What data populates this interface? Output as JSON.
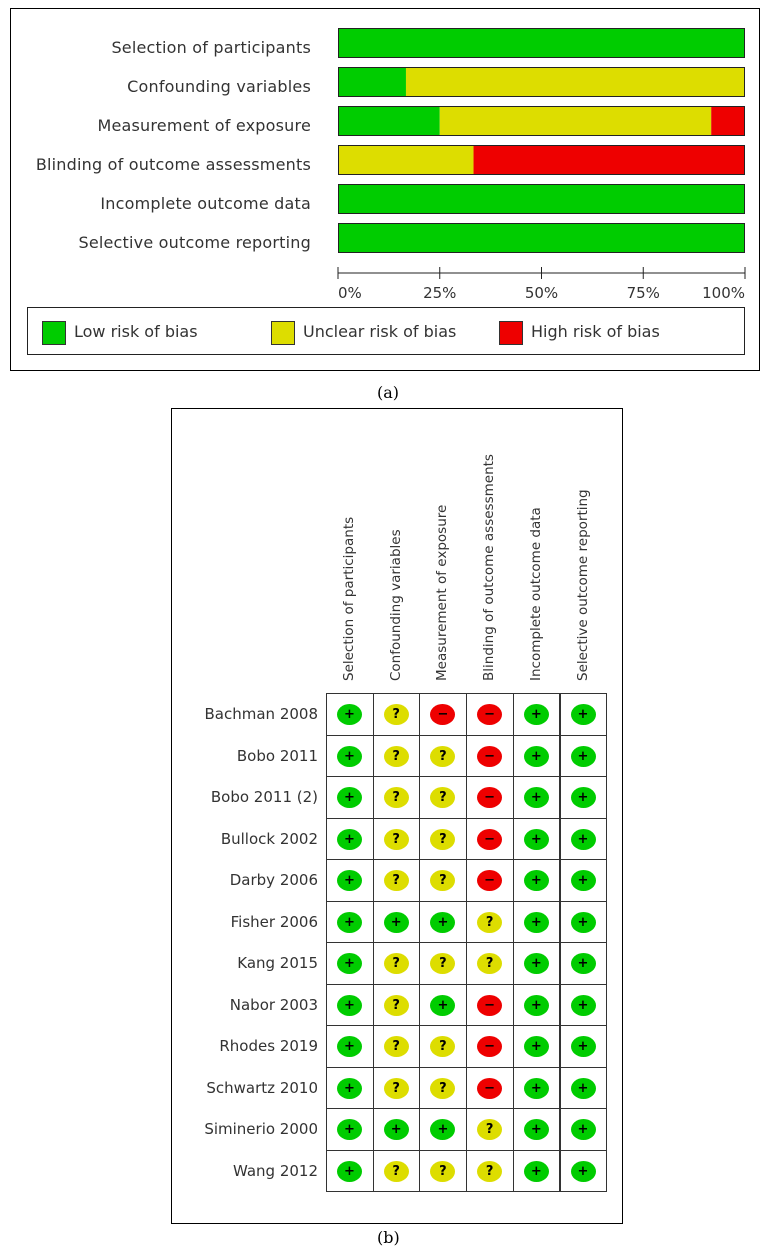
{
  "chart_data": [
    {
      "type": "bar",
      "orientation": "horizontal",
      "stacked": "100%",
      "categories": [
        "Selection of participants",
        "Confounding variables",
        "Measurement of exposure",
        "Blinding of outcome assessments",
        "Incomplete outcome data",
        "Selective outcome reporting"
      ],
      "series": [
        {
          "name": "Low risk of bias",
          "color": "#00CC00",
          "values": [
            100,
            16.7,
            25,
            0,
            100,
            100
          ]
        },
        {
          "name": "Unclear risk of bias",
          "color": "#DDDD00",
          "values": [
            0,
            83.3,
            66.7,
            33.3,
            0,
            0
          ]
        },
        {
          "name": "High risk of bias",
          "color": "#EE0000",
          "values": [
            0,
            0,
            8.3,
            66.7,
            0,
            0
          ]
        }
      ],
      "x_ticks": [
        "0%",
        "25%",
        "50%",
        "75%",
        "100%"
      ],
      "xlim": [
        0,
        100
      ],
      "legend_position": "bottom",
      "caption": "(a)"
    },
    {
      "type": "table",
      "columns": [
        "Selection of participants",
        "Confounding variables",
        "Measurement of exposure",
        "Blinding of outcome assessments",
        "Incomplete outcome data",
        "Selective outcome reporting"
      ],
      "rows": [
        {
          "study": "Bachman 2008",
          "judgements": [
            "low",
            "unclear",
            "high",
            "high",
            "low",
            "low"
          ]
        },
        {
          "study": "Bobo 2011",
          "judgements": [
            "low",
            "unclear",
            "unclear",
            "high",
            "low",
            "low"
          ]
        },
        {
          "study": "Bobo 2011 (2)",
          "judgements": [
            "low",
            "unclear",
            "unclear",
            "high",
            "low",
            "low"
          ]
        },
        {
          "study": "Bullock 2002",
          "judgements": [
            "low",
            "unclear",
            "unclear",
            "high",
            "low",
            "low"
          ]
        },
        {
          "study": "Darby 2006",
          "judgements": [
            "low",
            "unclear",
            "unclear",
            "high",
            "low",
            "low"
          ]
        },
        {
          "study": "Fisher 2006",
          "judgements": [
            "low",
            "low",
            "low",
            "unclear",
            "low",
            "low"
          ]
        },
        {
          "study": "Kang 2015",
          "judgements": [
            "low",
            "unclear",
            "unclear",
            "unclear",
            "low",
            "low"
          ]
        },
        {
          "study": "Nabor 2003",
          "judgements": [
            "low",
            "unclear",
            "low",
            "high",
            "low",
            "low"
          ]
        },
        {
          "study": "Rhodes 2019",
          "judgements": [
            "low",
            "unclear",
            "unclear",
            "high",
            "low",
            "low"
          ]
        },
        {
          "study": "Schwartz 2010",
          "judgements": [
            "low",
            "unclear",
            "unclear",
            "high",
            "low",
            "low"
          ]
        },
        {
          "study": "Siminerio 2000",
          "judgements": [
            "low",
            "low",
            "low",
            "unclear",
            "low",
            "low"
          ]
        },
        {
          "study": "Wang 2012",
          "judgements": [
            "low",
            "unclear",
            "unclear",
            "unclear",
            "low",
            "low"
          ]
        }
      ],
      "symbols": {
        "low": "+",
        "unclear": "?",
        "high": "−"
      },
      "colors": {
        "low": "#00CC00",
        "unclear": "#DDDD00",
        "high": "#EE0000"
      },
      "caption": "(b)"
    }
  ]
}
